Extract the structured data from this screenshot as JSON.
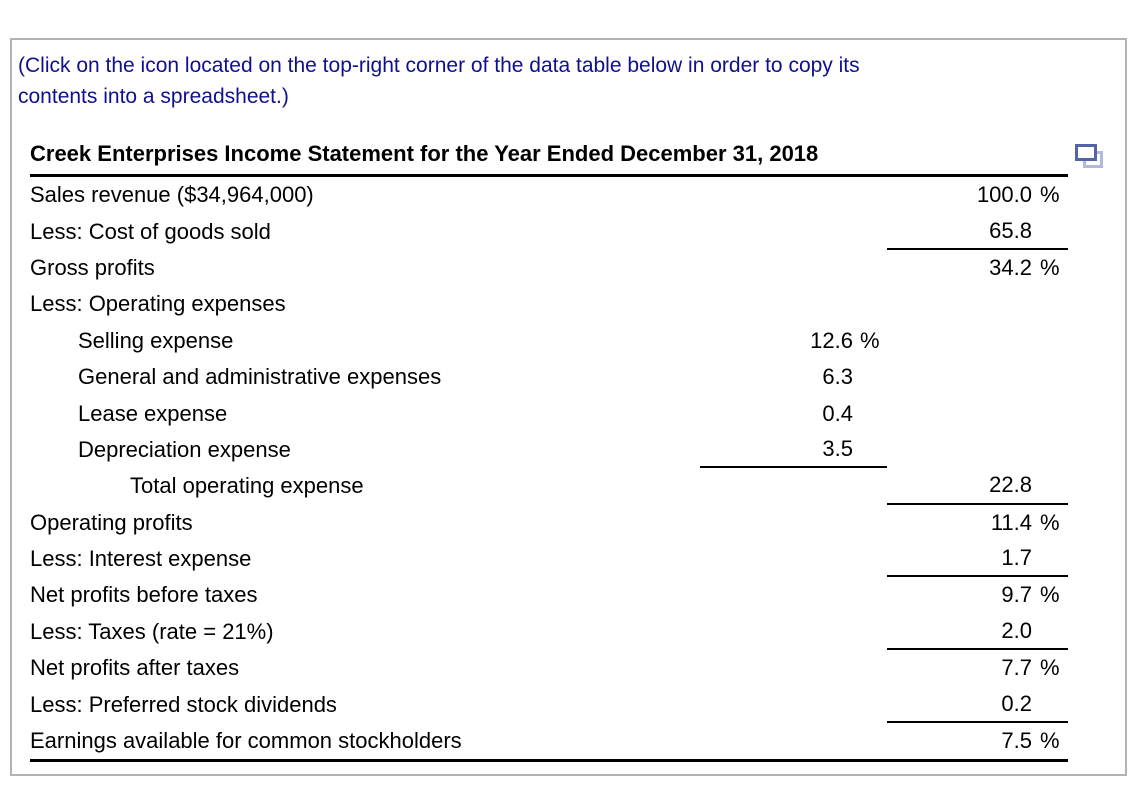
{
  "instruction": {
    "line1": "(Click on the icon located on the top-right corner of the data table below in order to copy its",
    "line2": "contents into a spreadsheet.)"
  },
  "table": {
    "title": "Creek Enterprises Income Statement for the Year Ended December 31, 2018",
    "copy_icon": "copy-table-to-spreadsheet",
    "rows": [
      {
        "label": "Sales revenue ($34,964,000)",
        "indent": 0,
        "mid": "",
        "mid_pct": "",
        "right": "100.0",
        "right_pct": "%",
        "mid_rule": false,
        "right_rule": false
      },
      {
        "label": "Less: Cost of goods sold",
        "indent": 0,
        "mid": "",
        "mid_pct": "",
        "right": "65.8",
        "right_pct": "",
        "mid_rule": false,
        "right_rule": true
      },
      {
        "label": "Gross profits",
        "indent": 0,
        "mid": "",
        "mid_pct": "",
        "right": "34.2",
        "right_pct": "%",
        "mid_rule": false,
        "right_rule": false
      },
      {
        "label": "Less: Operating expenses",
        "indent": 0,
        "mid": "",
        "mid_pct": "",
        "right": "",
        "right_pct": "",
        "mid_rule": false,
        "right_rule": false
      },
      {
        "label": "Selling expense",
        "indent": 1,
        "mid": "12.6",
        "mid_pct": "%",
        "right": "",
        "right_pct": "",
        "mid_rule": false,
        "right_rule": false
      },
      {
        "label": "General and administrative expenses",
        "indent": 1,
        "mid": "6.3",
        "mid_pct": "",
        "right": "",
        "right_pct": "",
        "mid_rule": false,
        "right_rule": false
      },
      {
        "label": "Lease expense",
        "indent": 1,
        "mid": "0.4",
        "mid_pct": "",
        "right": "",
        "right_pct": "",
        "mid_rule": false,
        "right_rule": false
      },
      {
        "label": "Depreciation expense",
        "indent": 1,
        "mid": "3.5",
        "mid_pct": "",
        "right": "",
        "right_pct": "",
        "mid_rule": true,
        "right_rule": false
      },
      {
        "label": "Total operating expense",
        "indent": 2,
        "mid": "",
        "mid_pct": "",
        "right": "22.8",
        "right_pct": "",
        "mid_rule": false,
        "right_rule": true
      },
      {
        "label": "Operating profits",
        "indent": 0,
        "mid": "",
        "mid_pct": "",
        "right": "11.4",
        "right_pct": "%",
        "mid_rule": false,
        "right_rule": false
      },
      {
        "label": "Less: Interest expense",
        "indent": 0,
        "mid": "",
        "mid_pct": "",
        "right": "1.7",
        "right_pct": "",
        "mid_rule": false,
        "right_rule": true
      },
      {
        "label": "Net profits before taxes",
        "indent": 0,
        "mid": "",
        "mid_pct": "",
        "right": "9.7",
        "right_pct": "%",
        "mid_rule": false,
        "right_rule": false
      },
      {
        "label": "Less: Taxes (rate = 21%)",
        "indent": 0,
        "mid": "",
        "mid_pct": "",
        "right": "2.0",
        "right_pct": "",
        "mid_rule": false,
        "right_rule": true
      },
      {
        "label": "Net profits after taxes",
        "indent": 0,
        "mid": "",
        "mid_pct": "",
        "right": "7.7",
        "right_pct": "%",
        "mid_rule": false,
        "right_rule": false
      },
      {
        "label": "Less: Preferred stock dividends",
        "indent": 0,
        "mid": "",
        "mid_pct": "",
        "right": "0.2",
        "right_pct": "",
        "mid_rule": false,
        "right_rule": true
      },
      {
        "label": "Earnings available for common stockholders",
        "indent": 0,
        "mid": "",
        "mid_pct": "",
        "right": "7.5",
        "right_pct": "%",
        "mid_rule": false,
        "right_rule": false
      }
    ]
  },
  "colors": {
    "instruction_text": "#10108c",
    "table_text": "#000000",
    "rule": "#000000",
    "frame_border": "#b3b3b3",
    "copy_icon_front": "#5565a4",
    "copy_icon_back": "#b1badb"
  }
}
